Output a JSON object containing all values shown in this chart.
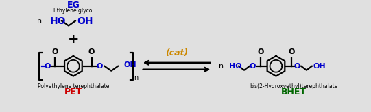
{
  "bg_color": "#e0e0e0",
  "pet_label": "Polyethylene terephthalate",
  "pet_abbr": "PET",
  "pet_abbr_color": "#cc0000",
  "eg_label": "Ethylene glycol",
  "eg_abbr": "EG",
  "eg_abbr_color": "#0000cc",
  "bhet_label": "bis(2-Hydroxyethyl)terephthalate",
  "bhet_abbr": "BHET",
  "bhet_abbr_color": "#006600",
  "cat_label": "(cat)",
  "cat_color": "#cc8800",
  "o_color": "#0000cc",
  "oh_color": "#0000cc",
  "black": "#000000",
  "struct_lw": 1.6,
  "ring_r": 15
}
